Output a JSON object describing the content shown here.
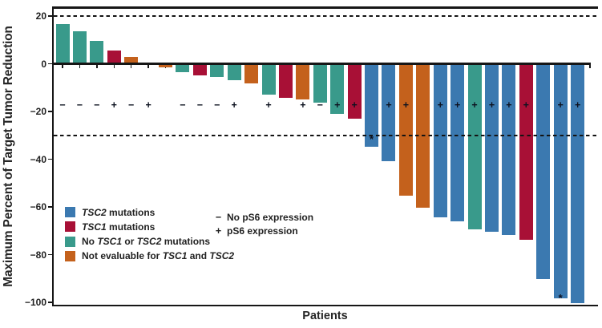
{
  "figure": {
    "ylabel": "Maximum Percent of Target Tumor Reduction",
    "xlabel": "Patients"
  },
  "colors": {
    "blue": "#3b79b0",
    "red": "#a81036",
    "teal": "#399a8b",
    "orange": "#c4611c",
    "axis": "#161616",
    "text": "#222222"
  },
  "axis": {
    "y_ticks": [
      20,
      0,
      -20,
      -40,
      -60,
      -80,
      -100
    ],
    "y_tick_labels": [
      "20",
      "0",
      "−20",
      "−40",
      "−60",
      "−80",
      "−100"
    ],
    "threshold_lines": [
      20,
      -30
    ]
  },
  "legend": {
    "mutations": [
      {
        "color": "blue",
        "segments": [
          {
            "t": "TSC2",
            "i": true
          },
          {
            "t": " mutations",
            "i": false
          }
        ]
      },
      {
        "color": "red",
        "segments": [
          {
            "t": "TSC1",
            "i": true
          },
          {
            "t": " mutations",
            "i": false
          }
        ]
      },
      {
        "color": "teal",
        "segments": [
          {
            "t": "No ",
            "i": false
          },
          {
            "t": "TSC1",
            "i": true
          },
          {
            "t": " or ",
            "i": false
          },
          {
            "t": "TSC2",
            "i": true
          },
          {
            "t": " mutations",
            "i": false
          }
        ]
      },
      {
        "color": "orange",
        "segments": [
          {
            "t": "Not evaluable for ",
            "i": false
          },
          {
            "t": "TSC1",
            "i": true
          },
          {
            "t": " and ",
            "i": false
          },
          {
            "t": "TSC2",
            "i": true
          }
        ]
      }
    ],
    "ps6": [
      {
        "symbol": "−",
        "label": "No pS6 expression"
      },
      {
        "symbol": "+",
        "label": "pS6 expression"
      }
    ]
  },
  "chart_data": {
    "type": "bar",
    "subtype": "waterfall",
    "title": "",
    "xlabel": "Patients",
    "ylabel": "Maximum Percent of Target Tumor Reduction",
    "ylim": [
      -100,
      20
    ],
    "threshold_lines": [
      20,
      -30
    ],
    "legend_position": "lower-left-inside",
    "group_meaning": {
      "blue": "TSC2 mutations",
      "red": "TSC1 mutations",
      "teal": "No TSC1 or TSC2 mutations",
      "orange": "Not evaluable for TSC1 and TSC2",
      "none": "no bar shown"
    },
    "patients": [
      {
        "group": "teal",
        "value": 16.5,
        "ps6": "−"
      },
      {
        "group": "teal",
        "value": 13.5,
        "ps6": "−"
      },
      {
        "group": "teal",
        "value": 9.5,
        "ps6": "−"
      },
      {
        "group": "red",
        "value": 5.5,
        "ps6": "+"
      },
      {
        "group": "orange",
        "value": 3,
        "ps6": "−"
      },
      {
        "group": "none",
        "value": 0,
        "ps6": "+"
      },
      {
        "group": "orange",
        "value": -1,
        "ps6": ""
      },
      {
        "group": "teal",
        "value": -3,
        "ps6": "−"
      },
      {
        "group": "red",
        "value": -4.5,
        "ps6": "−"
      },
      {
        "group": "teal",
        "value": -5,
        "ps6": "−"
      },
      {
        "group": "teal",
        "value": -6.5,
        "ps6": "+"
      },
      {
        "group": "orange",
        "value": -8,
        "ps6": ""
      },
      {
        "group": "teal",
        "value": -12.5,
        "ps6": "+"
      },
      {
        "group": "red",
        "value": -14,
        "ps6": ""
      },
      {
        "group": "orange",
        "value": -14.5,
        "ps6": "+"
      },
      {
        "group": "teal",
        "value": -16,
        "ps6": "−"
      },
      {
        "group": "teal",
        "value": -20.5,
        "ps6": "+"
      },
      {
        "group": "red",
        "value": -22.5,
        "ps6": "+"
      },
      {
        "group": "blue",
        "value": -34.5,
        "ps6": "",
        "marker": "*",
        "marker_value": -31
      },
      {
        "group": "blue",
        "value": -40.5,
        "ps6": "+"
      },
      {
        "group": "orange",
        "value": -55,
        "ps6": "+"
      },
      {
        "group": "orange",
        "value": -60,
        "ps6": ""
      },
      {
        "group": "blue",
        "value": -64,
        "ps6": "+"
      },
      {
        "group": "blue",
        "value": -65.5,
        "ps6": "+"
      },
      {
        "group": "teal",
        "value": -69,
        "ps6": "+"
      },
      {
        "group": "blue",
        "value": -70,
        "ps6": "+"
      },
      {
        "group": "blue",
        "value": -71.5,
        "ps6": "+"
      },
      {
        "group": "red",
        "value": -73.5,
        "ps6": "+"
      },
      {
        "group": "blue",
        "value": -90,
        "ps6": ""
      },
      {
        "group": "blue",
        "value": -98,
        "ps6": "+",
        "marker": "*",
        "marker_value": -97.5
      },
      {
        "group": "blue",
        "value": -100,
        "ps6": "+"
      }
    ]
  }
}
